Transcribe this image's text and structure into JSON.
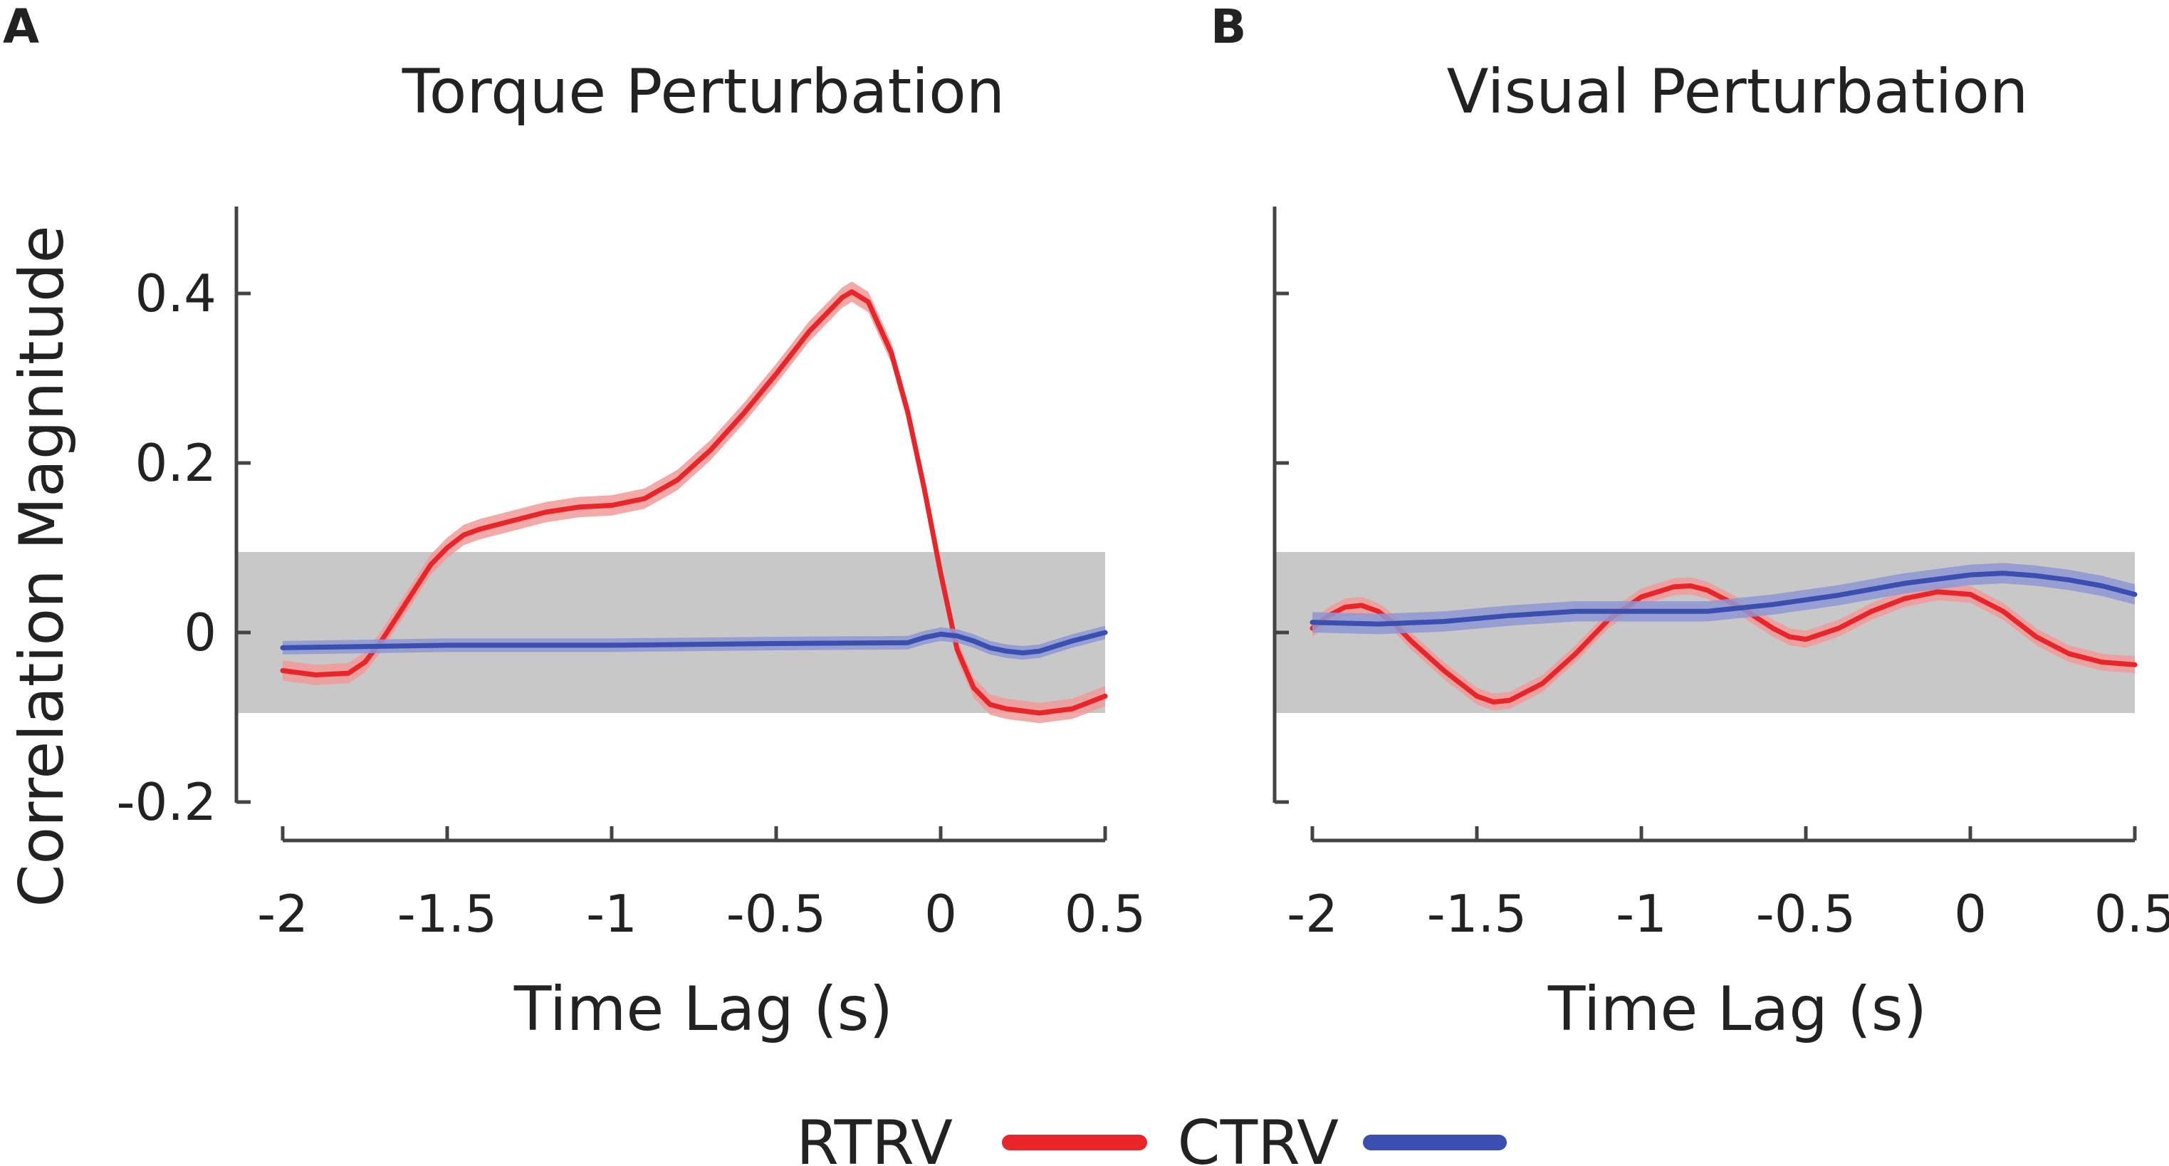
{
  "figure": {
    "legend": [
      {
        "label": "RTRV",
        "color": "#e8262a"
      },
      {
        "label": "CTRV",
        "color": "#3a4faf"
      }
    ],
    "colors": {
      "RTRV": "#e8262a",
      "RTRV_band": "#f29a9a",
      "CTRV": "#3a4faf",
      "CTRV_band": "#8e98d4",
      "null_band": "#c8c8c8",
      "axis": "#444444"
    }
  },
  "chart_data": [
    {
      "panel": "A",
      "type": "line",
      "title": "Torque Perturbation",
      "xlabel": "Time Lag (s)",
      "ylabel": "Correlation Magnitude",
      "xlim": [
        -2,
        0.5
      ],
      "ylim": [
        -0.2,
        0.5
      ],
      "xticks": [
        -2,
        -1.5,
        -1,
        -0.5,
        0,
        0.5
      ],
      "xtick_labels": [
        "-2",
        "-1.5",
        "-1",
        "-0.5",
        "0",
        "0.5"
      ],
      "yticks": [
        -0.2,
        0,
        0.2,
        0.4
      ],
      "ytick_labels": [
        "-0.2",
        "0",
        "0.2",
        "0.4"
      ],
      "null_band": [
        -0.095,
        0.095
      ],
      "series": [
        {
          "name": "RTRV",
          "x": [
            -2,
            -1.9,
            -1.8,
            -1.75,
            -1.7,
            -1.65,
            -1.6,
            -1.55,
            -1.5,
            -1.45,
            -1.4,
            -1.3,
            -1.2,
            -1.1,
            -1.0,
            -0.9,
            -0.8,
            -0.7,
            -0.6,
            -0.5,
            -0.4,
            -0.3,
            -0.27,
            -0.22,
            -0.15,
            -0.1,
            -0.05,
            0.0,
            0.05,
            0.1,
            0.15,
            0.2,
            0.3,
            0.4,
            0.5
          ],
          "y": [
            -0.045,
            -0.05,
            -0.048,
            -0.035,
            -0.01,
            0.02,
            0.05,
            0.08,
            0.1,
            0.115,
            0.122,
            0.132,
            0.142,
            0.148,
            0.15,
            0.158,
            0.18,
            0.215,
            0.258,
            0.305,
            0.355,
            0.395,
            0.402,
            0.39,
            0.33,
            0.26,
            0.17,
            0.07,
            -0.02,
            -0.065,
            -0.085,
            -0.09,
            -0.095,
            -0.09,
            -0.075
          ],
          "band": 0.012
        },
        {
          "name": "CTRV",
          "x": [
            -2,
            -1.5,
            -1.0,
            -0.5,
            -0.1,
            -0.05,
            0.0,
            0.05,
            0.1,
            0.15,
            0.2,
            0.25,
            0.3,
            0.35,
            0.4,
            0.5
          ],
          "y": [
            -0.018,
            -0.015,
            -0.015,
            -0.013,
            -0.012,
            -0.006,
            -0.002,
            -0.004,
            -0.01,
            -0.018,
            -0.022,
            -0.024,
            -0.022,
            -0.016,
            -0.01,
            0.0
          ],
          "band": 0.008
        }
      ]
    },
    {
      "panel": "B",
      "type": "line",
      "title": "Visual Perturbation",
      "xlabel": "Time Lag (s)",
      "ylabel": "",
      "xlim": [
        -2,
        0.5
      ],
      "ylim": [
        -0.2,
        0.5
      ],
      "xticks": [
        -2,
        -1.5,
        -1,
        -0.5,
        0,
        0.5
      ],
      "xtick_labels": [
        "-2",
        "-1.5",
        "-1",
        "-0.5",
        "0",
        "0.5"
      ],
      "yticks": [
        -0.2,
        0,
        0.2,
        0.4
      ],
      "ytick_labels": [],
      "null_band": [
        -0.095,
        0.095
      ],
      "series": [
        {
          "name": "RTRV",
          "x": [
            -2,
            -1.95,
            -1.9,
            -1.85,
            -1.8,
            -1.75,
            -1.7,
            -1.6,
            -1.5,
            -1.45,
            -1.4,
            -1.3,
            -1.2,
            -1.1,
            -1.0,
            -0.9,
            -0.85,
            -0.8,
            -0.7,
            -0.6,
            -0.55,
            -0.5,
            -0.4,
            -0.3,
            -0.2,
            -0.1,
            0.0,
            0.1,
            0.2,
            0.3,
            0.4,
            0.5
          ],
          "y": [
            0.005,
            0.02,
            0.03,
            0.032,
            0.025,
            0.01,
            -0.01,
            -0.045,
            -0.075,
            -0.082,
            -0.08,
            -0.06,
            -0.025,
            0.015,
            0.042,
            0.054,
            0.055,
            0.05,
            0.03,
            0.005,
            -0.005,
            -0.008,
            0.005,
            0.025,
            0.04,
            0.048,
            0.045,
            0.025,
            -0.005,
            -0.025,
            -0.035,
            -0.038
          ],
          "band": 0.01
        },
        {
          "name": "CTRV",
          "x": [
            -2,
            -1.8,
            -1.6,
            -1.4,
            -1.2,
            -1.0,
            -0.8,
            -0.6,
            -0.4,
            -0.2,
            0.0,
            0.1,
            0.2,
            0.3,
            0.4,
            0.5
          ],
          "y": [
            0.012,
            0.01,
            0.013,
            0.02,
            0.025,
            0.025,
            0.025,
            0.033,
            0.044,
            0.058,
            0.068,
            0.07,
            0.067,
            0.062,
            0.055,
            0.045
          ],
          "band": 0.012
        }
      ]
    }
  ]
}
